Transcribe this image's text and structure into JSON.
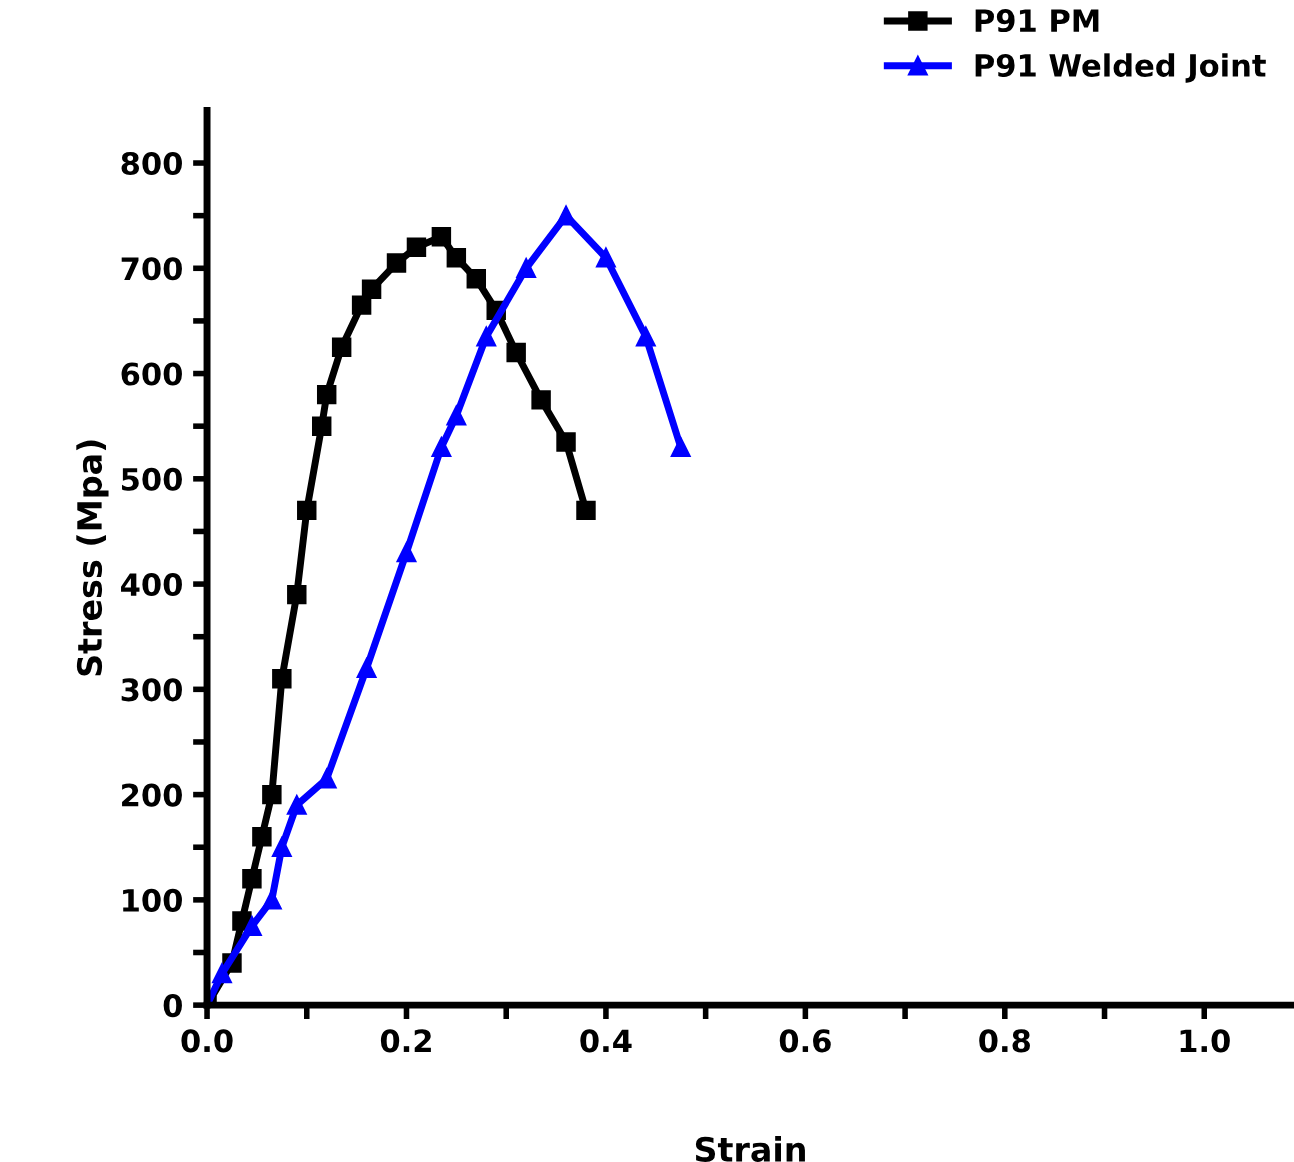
{
  "chart_data": {
    "type": "line",
    "xlabel": "Strain",
    "ylabel": "Stress (Mpa)",
    "xlim": [
      0,
      1.09
    ],
    "ylim": [
      0,
      850
    ],
    "xticks": [
      {
        "value": 0,
        "label": "0.0"
      },
      {
        "value": 0.1,
        "label": null
      },
      {
        "value": 0.2,
        "label": "0.2"
      },
      {
        "value": 0.3,
        "label": null
      },
      {
        "value": 0.4,
        "label": "0.4"
      },
      {
        "value": 0.5,
        "label": null
      },
      {
        "value": 0.6,
        "label": "0.6"
      },
      {
        "value": 0.7,
        "label": null
      },
      {
        "value": 0.8,
        "label": "0.8"
      },
      {
        "value": 0.9,
        "label": null
      },
      {
        "value": 1.0,
        "label": "1.0"
      }
    ],
    "yticks": [
      0,
      {
        "value": 50,
        "label": null
      },
      100,
      {
        "value": 150,
        "label": null
      },
      200,
      {
        "value": 250,
        "label": null
      },
      300,
      {
        "value": 350,
        "label": null
      },
      400,
      {
        "value": 450,
        "label": null
      },
      500,
      {
        "value": 550,
        "label": null
      },
      600,
      {
        "value": 650,
        "label": null
      },
      700,
      {
        "value": 750,
        "label": null
      },
      800
    ],
    "grid": false,
    "legend": "top right",
    "series": [
      {
        "name": "P91 PM",
        "color": "#000000",
        "marker": "square",
        "x": [
          0.0,
          0.025,
          0.035,
          0.045,
          0.055,
          0.065,
          0.075,
          0.09,
          0.1,
          0.115,
          0.12,
          0.135,
          0.155,
          0.165,
          0.19,
          0.21,
          0.235,
          0.25,
          0.27,
          0.29,
          0.31,
          0.335,
          0.36,
          0.38
        ],
        "values": [
          0,
          40,
          80,
          120,
          160,
          200,
          310,
          390,
          470,
          550,
          580,
          625,
          665,
          680,
          705,
          720,
          730,
          710,
          690,
          660,
          620,
          575,
          535,
          470
        ]
      },
      {
        "name": "P91 Welded Joint",
        "color": "#0000ff",
        "marker": "triangle",
        "x": [
          0.0,
          0.015,
          0.045,
          0.065,
          0.075,
          0.09,
          0.12,
          0.16,
          0.2,
          0.235,
          0.25,
          0.28,
          0.32,
          0.36,
          0.4,
          0.44,
          0.475
        ],
        "values": [
          0,
          30,
          75,
          100,
          150,
          190,
          215,
          320,
          430,
          530,
          560,
          635,
          700,
          750,
          710,
          635,
          530
        ]
      }
    ]
  }
}
